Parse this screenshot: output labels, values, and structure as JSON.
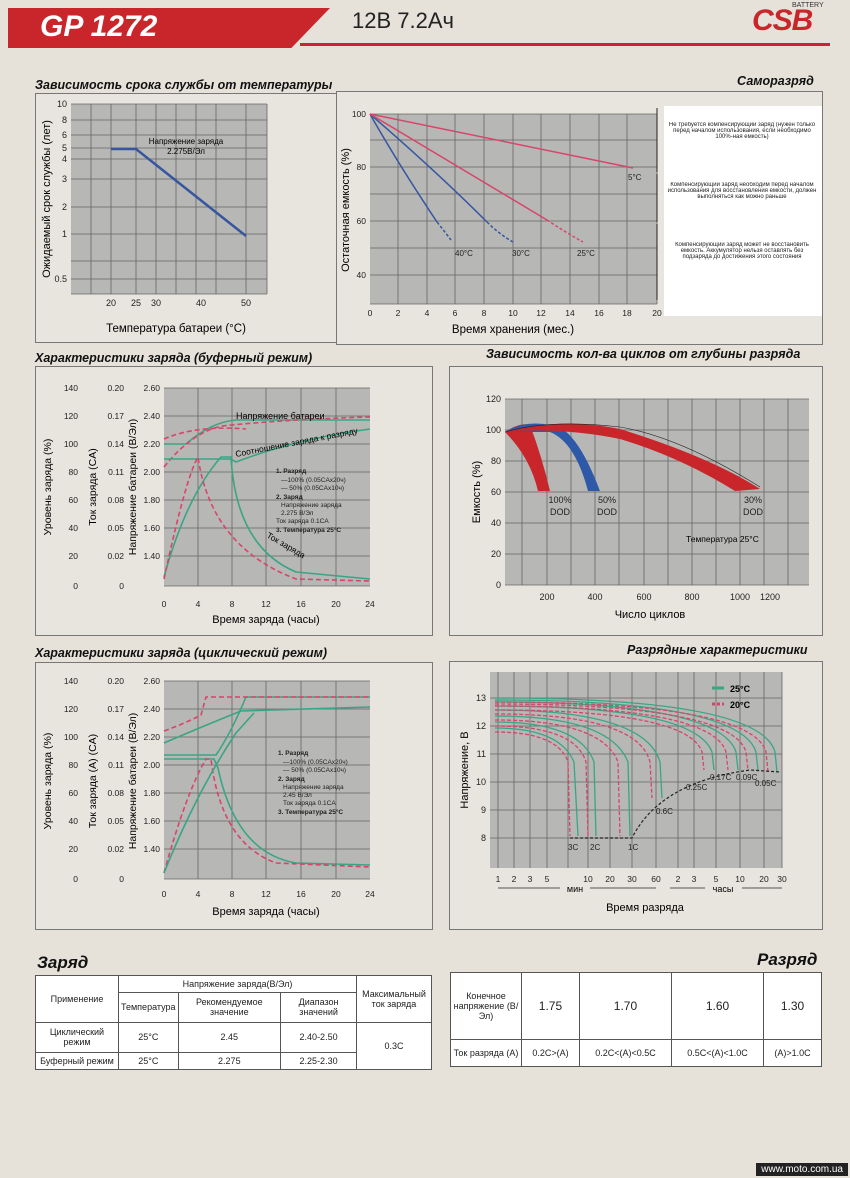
{
  "header": {
    "model": "GP 1272",
    "spec": "12В 7.2Ач",
    "logo": "CSB",
    "logo_small": "BATTERY"
  },
  "panels": {
    "life_temp": {
      "title": "Зависимость срока службы от температуры",
      "ylabel": "Ожидаемый срок службы (лет)",
      "xlabel": "Температура батареи (°C)",
      "note1": "Напряжение заряда",
      "note2": "2.275В/Эл",
      "yticks": [
        "10",
        "8",
        "6",
        "5",
        "4",
        "3",
        "2",
        "1",
        "0.5"
      ],
      "xticks": [
        "20",
        "25",
        "30",
        "40",
        "50"
      ]
    },
    "self_discharge": {
      "title": "Саморазряд",
      "ylabel": "Остаточная емкость (%)",
      "xlabel": "Время хранения (мес.)",
      "yticks": [
        "100",
        "80",
        "60",
        "40"
      ],
      "xticks": [
        "0",
        "2",
        "4",
        "6",
        "8",
        "10",
        "12",
        "14",
        "16",
        "18",
        "20"
      ],
      "curve_labels": [
        "40°C",
        "30°C",
        "25°C",
        "5°C"
      ],
      "notes": [
        "Не требуется компенсирующий заряд (нужен только перед началом использования, если необходимо 100%-ная емкость)",
        "Компенсирующий заряд необходим перед началом использования для восстановления емкости, должен выполняться как можно раньше",
        "Компенсирующий заряд может не восстановить емкость. Аккумулятор нельзя оставлять без подзаряда до достижения этого состояния"
      ]
    },
    "float_charge": {
      "title": "Характеристики заряда (буферный режим)",
      "ylabel1": "Уровень заряда (%)",
      "ylabel2": "Ток заряда (CA)",
      "ylabel3": "Напряжение батареи (В/Эл)",
      "xlabel": "Время заряда (часы)",
      "y1": [
        "140",
        "120",
        "100",
        "80",
        "60",
        "40",
        "20",
        "0"
      ],
      "y2": [
        "0.20",
        "0.17",
        "0.14",
        "0.11",
        "0.08",
        "0.05",
        "0.02",
        "0"
      ],
      "y3": [
        "2.60",
        "2.40",
        "2.20",
        "2.00",
        "1.80",
        "1.60",
        "1.40"
      ],
      "xticks": [
        "0",
        "4",
        "8",
        "12",
        "16",
        "20",
        "24"
      ],
      "lbl_voltage": "Напряжение батареи",
      "lbl_ratio": "Соотношение заряда к разряду",
      "lbl_current": "Ток заряда",
      "legend": [
        "1. Разряд",
        "—100% (0.05CAx20ч)",
        "— 50% (0.05CAx10ч)",
        "2. Заряд",
        "Напряжение заряда",
        "2.275 В/Эл",
        "Ток заряда 0.1CA",
        "3. Температура 25°C"
      ]
    },
    "cycle_depth": {
      "title": "Зависимость кол-ва циклов от глубины разряда",
      "ylabel": "Емкость (%)",
      "xlabel": "Число циклов",
      "yticks": [
        "120",
        "100",
        "80",
        "60",
        "40",
        "20",
        "0"
      ],
      "xticks": [
        "200",
        "400",
        "600",
        "800",
        "1000",
        "1200"
      ],
      "labels": [
        "100%",
        "DOD",
        "50%",
        "DOD",
        "30%",
        "DOD"
      ],
      "temp": "Температура 25°C"
    },
    "cyclic_charge": {
      "title": "Характеристики заряда (циклический режим)",
      "ylabel1": "Уровень заряда (%)",
      "ylabel2": "Ток заряда (A) (CA)",
      "ylabel3": "Напряжение батареи (В/Эл)",
      "xlabel": "Время заряда (часы)",
      "y1": [
        "140",
        "120",
        "100",
        "80",
        "60",
        "40",
        "20",
        "0"
      ],
      "y2": [
        "0.20",
        "0.17",
        "0.14",
        "0.11",
        "0.08",
        "0.05",
        "0.02",
        "0"
      ],
      "y3": [
        "2.60",
        "2.40",
        "2.20",
        "2.00",
        "1.80",
        "1.60",
        "1.40"
      ],
      "xticks": [
        "0",
        "4",
        "8",
        "12",
        "16",
        "20",
        "24"
      ],
      "legend": [
        "1. Разряд",
        "—100% (0.05CAx20ч)",
        "— 50% (0.05CAx10ч)",
        "2. Заряд",
        "Напряжение заряда",
        "2.45 В/Эл",
        "Ток заряда 0.1CA",
        "3. Температура 25°C"
      ]
    },
    "discharge": {
      "title": "Разрядные характеристики",
      "ylabel": "Напряжение, В",
      "xlabel": "Время разряда",
      "yticks": [
        "13",
        "12",
        "11",
        "10",
        "9",
        "8"
      ],
      "xticks_min": [
        "1",
        "2",
        "3",
        "5",
        "10",
        "20",
        "30",
        "60"
      ],
      "xticks_h": [
        "2",
        "3",
        "5",
        "10",
        "20",
        "30"
      ],
      "unit_min": "мин",
      "unit_h": "часы",
      "legend": [
        "25°C",
        "20°C"
      ],
      "rates": [
        "3C",
        "2C",
        "1C",
        "0.6C",
        "0.25C",
        "0.17C",
        "0.09C",
        "0.05C"
      ]
    }
  },
  "charge_table": {
    "title": "Заряд",
    "h_application": "Применение",
    "h_voltage": "Напряжение заряда(В/Эл)",
    "h_temp": "Температура",
    "h_rec": "Рекомендуемое значение",
    "h_range": "Диапазон значений",
    "h_max": "Максимальный ток заряда",
    "rows": [
      {
        "app": "Циклический режим",
        "temp": "25°C",
        "rec": "2.45",
        "range": "2.40-2.50"
      },
      {
        "app": "Буферный режим",
        "temp": "25°C",
        "rec": "2.275",
        "range": "2.25-2.30"
      }
    ],
    "max": "0.3C"
  },
  "discharge_table": {
    "title": "Разряд",
    "h_final": "Конечное напряжение (В/Эл)",
    "h_current": "Ток разряда (A)",
    "voltages": [
      "1.75",
      "1.70",
      "1.60",
      "1.30"
    ],
    "currents": [
      "0.2C>(A)",
      "0.2C<(A)<0.5C",
      "0.5C<(A)<1.0C",
      "(A)>1.0C"
    ]
  },
  "footer": "www.moto.com.ua",
  "colors": {
    "red": "#c8262b",
    "blue": "#3656a0",
    "green": "#3aa585",
    "pink": "#d8456a",
    "grid": "#666666"
  }
}
